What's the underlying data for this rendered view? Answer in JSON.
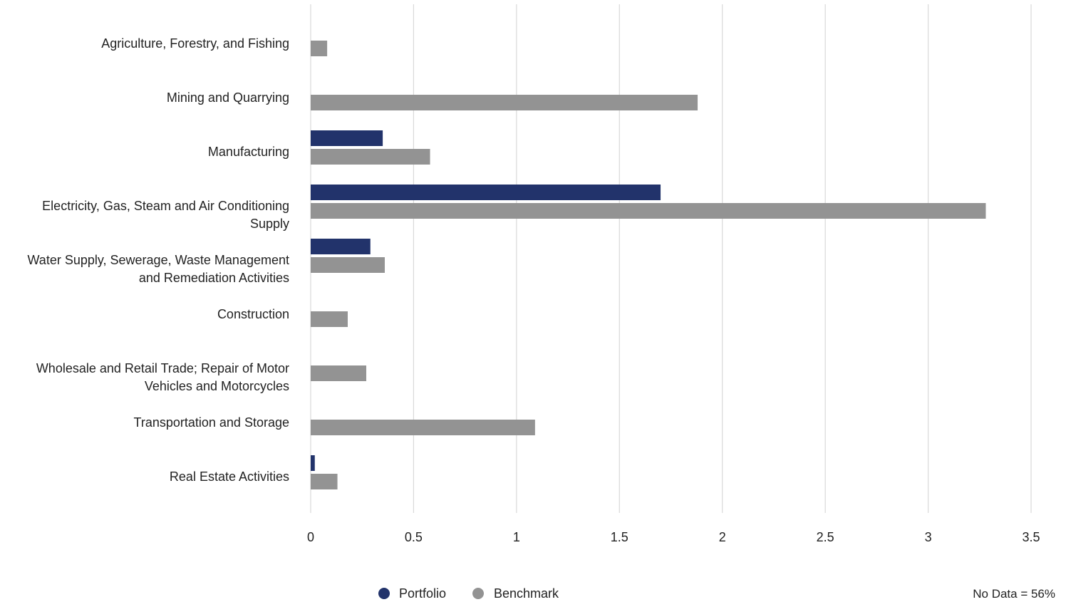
{
  "chart_data": {
    "type": "bar",
    "orientation": "horizontal",
    "categories": [
      "Agriculture, Forestry, and Fishing",
      "Mining and Quarrying",
      "Manufacturing",
      "Electricity, Gas, Steam and Air Conditioning Supply",
      "Water Supply, Sewerage, Waste Management and Remediation Activities",
      "Construction",
      "Wholesale and Retail Trade; Repair of Motor Vehicles and Motorcycles",
      "Transportation and Storage",
      "Real Estate Activities"
    ],
    "category_label_lines": [
      [
        "Agriculture, Forestry, and Fishing"
      ],
      [
        "Mining and Quarrying"
      ],
      [
        "Manufacturing"
      ],
      [
        "Electricity, Gas, Steam and Air Conditioning",
        "Supply"
      ],
      [
        "Water Supply, Sewerage, Waste Management",
        "and Remediation Activities"
      ],
      [
        "Construction"
      ],
      [
        "Wholesale and Retail Trade; Repair of Motor",
        "Vehicles and Motorcycles"
      ],
      [
        "Transportation and Storage"
      ],
      [
        "Real Estate Activities"
      ]
    ],
    "series": [
      {
        "name": "Portfolio",
        "color": "#22336b",
        "values": [
          null,
          null,
          0.35,
          1.7,
          0.29,
          null,
          null,
          null,
          0.02
        ]
      },
      {
        "name": "Benchmark",
        "color": "#939393",
        "values": [
          0.08,
          1.88,
          0.58,
          3.28,
          0.36,
          0.18,
          0.27,
          1.09,
          0.13
        ]
      }
    ],
    "xlim": [
      0,
      3.5
    ],
    "xticks": [
      0,
      0.5,
      1,
      1.5,
      2,
      2.5,
      3,
      3.5
    ],
    "xtick_labels": [
      "0",
      "0.5",
      "1",
      "1.5",
      "2",
      "2.5",
      "3",
      "3.5"
    ],
    "grid": "vertical",
    "legend": "bottom-center",
    "title": "",
    "xlabel": "",
    "ylabel": ""
  },
  "footnote": "No Data = 56%",
  "colors": {
    "portfolio": "#22336b",
    "benchmark": "#939393",
    "grid": "#d9d9d9"
  }
}
